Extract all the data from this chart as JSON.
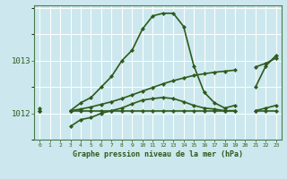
{
  "title": "Graphe pression niveau de la mer (hPa)",
  "bg_color": "#cce8ee",
  "grid_color": "#ffffff",
  "line_color": "#2d5a1b",
  "hours": [
    0,
    1,
    2,
    3,
    4,
    5,
    6,
    7,
    8,
    9,
    10,
    11,
    12,
    13,
    14,
    15,
    16,
    17,
    18,
    19,
    20,
    21,
    22,
    23
  ],
  "y_main": [
    1012.1,
    null,
    null,
    1012.05,
    1012.2,
    1012.3,
    1012.5,
    1012.7,
    1013.0,
    1013.2,
    1013.6,
    1013.85,
    1013.9,
    1013.9,
    1013.65,
    1012.9,
    1012.4,
    1012.2,
    1012.1,
    1012.15,
    null,
    1012.5,
    1012.9,
    1013.1
  ],
  "y_flat": [
    1012.05,
    null,
    null,
    1012.05,
    1012.05,
    1012.05,
    1012.05,
    1012.05,
    1012.05,
    1012.05,
    1012.05,
    1012.05,
    1012.05,
    1012.05,
    1012.05,
    1012.05,
    1012.05,
    1012.05,
    1012.05,
    1012.05,
    null,
    1012.05,
    1012.05,
    1012.05
  ],
  "y_low": [
    1012.05,
    null,
    null,
    1011.75,
    1011.88,
    1011.92,
    1012.0,
    1012.05,
    1012.1,
    1012.18,
    1012.25,
    1012.28,
    1012.3,
    1012.28,
    1012.22,
    1012.15,
    1012.1,
    1012.08,
    1012.05,
    1012.05,
    null,
    1012.05,
    1012.1,
    1012.15
  ],
  "y_diag": [
    1012.05,
    null,
    null,
    1012.05,
    1012.08,
    1012.12,
    1012.17,
    1012.22,
    1012.28,
    1012.35,
    1012.42,
    1012.49,
    1012.56,
    1012.62,
    1012.67,
    1012.72,
    1012.75,
    1012.78,
    1012.8,
    1012.82,
    null,
    1012.88,
    1012.95,
    1013.05
  ],
  "ylim": [
    1011.55,
    1014.05
  ],
  "yticks": [
    1012.0,
    1013.0
  ],
  "xlim": [
    -0.5,
    23.5
  ]
}
